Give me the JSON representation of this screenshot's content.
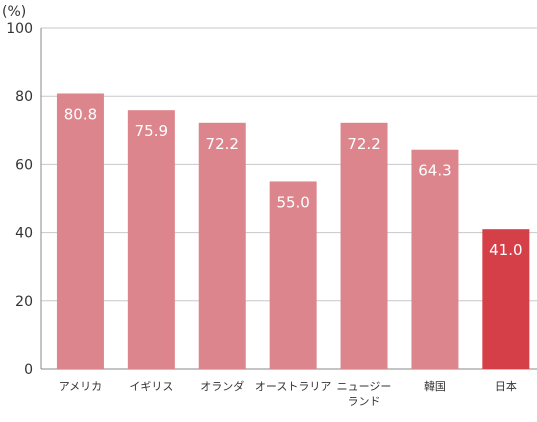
{
  "chart_data": {
    "type": "bar",
    "unit_label": "(%)",
    "categories": [
      "アメリカ",
      "イギリス",
      "オランダ",
      "オーストラリア",
      "ニュージーランド",
      "韓国",
      "日本"
    ],
    "category_lines": [
      [
        "アメリカ"
      ],
      [
        "イギリス"
      ],
      [
        "オランダ"
      ],
      [
        "オーストラリア"
      ],
      [
        "ニュージー",
        "ランド"
      ],
      [
        "韓国"
      ],
      [
        "日本"
      ]
    ],
    "values": [
      80.8,
      75.9,
      72.2,
      55.0,
      72.2,
      64.3,
      41.0
    ],
    "value_labels": [
      "80.8",
      "75.9",
      "72.2",
      "55.0",
      "72.2",
      "64.3",
      "41.0"
    ],
    "highlight_index": 6,
    "ylim": [
      0,
      100
    ],
    "yticks": [
      0,
      20,
      40,
      60,
      80,
      100
    ],
    "grid": true,
    "colors": {
      "bar": "#dd858d",
      "highlight": "#d53f48",
      "grid": "#c8c8c8",
      "axis": "#888888"
    }
  }
}
